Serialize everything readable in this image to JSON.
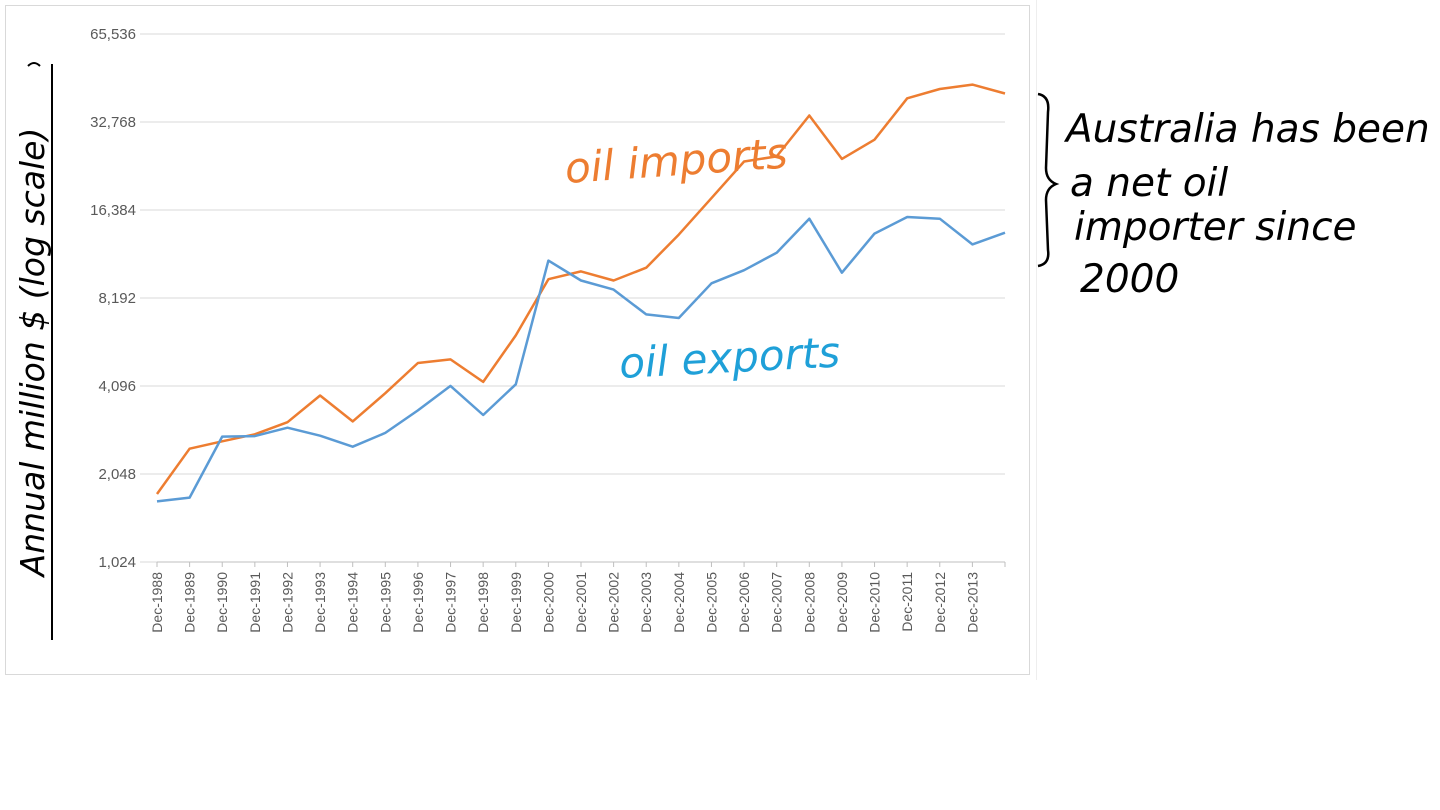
{
  "chart_data": {
    "type": "line",
    "ylabel": "Annual million $ (log scale)",
    "y_scale": "log2",
    "ylim": [
      1024,
      65536
    ],
    "y_ticks": [
      "1,024",
      "2,048",
      "4,096",
      "8,192",
      "16,384",
      "32,768",
      "65,536"
    ],
    "y_tick_values": [
      1024,
      2048,
      4096,
      8192,
      16384,
      32768,
      65536
    ],
    "grid": true,
    "x_tick_labels": [
      "Dec-1988",
      "Dec-1989",
      "Dec-1990",
      "Dec-1991",
      "Dec-1992",
      "Dec-1993",
      "Dec-1994",
      "Dec-1995",
      "Dec-1996",
      "Dec-1997",
      "Dec-1998",
      "Dec-1999",
      "Dec-2000",
      "Dec-2001",
      "Dec-2002",
      "Dec-2003",
      "Dec-2004",
      "Dec-2005",
      "Dec-2006",
      "Dec-2007",
      "Dec-2008",
      "Dec-2009",
      "Dec-2010",
      "Dec-2011",
      "Dec-2012",
      "Dec-2013"
    ],
    "n_points": 27,
    "series": [
      {
        "name": "oil imports",
        "color": "#ed7d31",
        "values": [
          1750,
          2500,
          2650,
          2800,
          3080,
          3800,
          3100,
          3870,
          4910,
          5050,
          4230,
          6100,
          9500,
          10100,
          9400,
          10400,
          13500,
          18000,
          24000,
          25000,
          34500,
          24500,
          28500,
          39500,
          42500,
          44000,
          41000
        ]
      },
      {
        "name": "oil exports",
        "color": "#5b9bd5",
        "values": [
          1650,
          1700,
          2750,
          2760,
          2950,
          2770,
          2540,
          2830,
          3380,
          4100,
          3260,
          4150,
          11000,
          9400,
          8750,
          7200,
          7000,
          9200,
          10200,
          11700,
          15300,
          10000,
          13600,
          15500,
          15300,
          12500,
          13700
        ]
      }
    ]
  },
  "annotations": {
    "imports_label": "oil imports",
    "exports_label": "oil exports",
    "note_line1": "Australia has been",
    "note_line2": "a net oil",
    "note_line3": "importer since",
    "note_line4": "2000"
  }
}
